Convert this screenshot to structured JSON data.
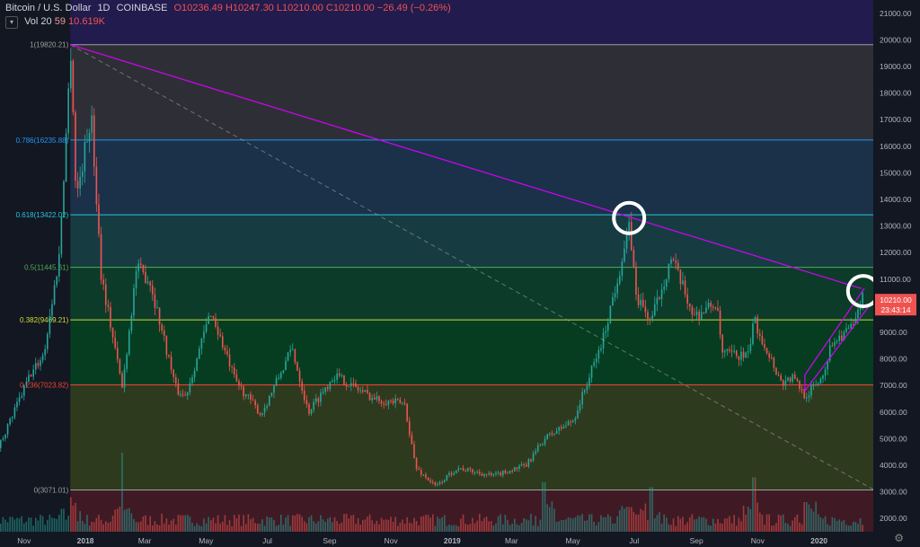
{
  "header": {
    "symbol": "Bitcoin / U.S. Dollar",
    "interval": "1D",
    "exchange": "COINBASE",
    "ohlc": "O10236.49  H10247.30  L10210.00  C10210.00  −26.49 (−0.26%)"
  },
  "volume_indicator": {
    "label": "Vol 20",
    "value1": "59",
    "value2": "10.619K"
  },
  "price_badge": {
    "price": "10210.00",
    "countdown": "23:43:14"
  },
  "colors": {
    "background": "#131722",
    "trendline": "#d500f9",
    "circle": "#ffffff",
    "up": "#26a69a",
    "down": "#ef5350"
  },
  "chart_data": {
    "type": "candlestick",
    "y_axis": {
      "range": [
        1500,
        21500
      ],
      "ticks": [
        "21000.00",
        "20000.00",
        "19000.00",
        "18000.00",
        "17000.00",
        "16000.00",
        "15000.00",
        "14000.00",
        "13000.00",
        "12000.00",
        "11000.00",
        "10000.00",
        "9000.00",
        "8000.00",
        "7000.00",
        "6000.00",
        "5000.00",
        "4000.00",
        "3000.00",
        "2000.00"
      ]
    },
    "x_axis": {
      "labels": [
        "Nov",
        "2018",
        "Mar",
        "May",
        "Jul",
        "Sep",
        "Nov",
        "2019",
        "Mar",
        "May",
        "Jul",
        "Sep",
        "Nov",
        "2020"
      ]
    },
    "fib_levels": [
      {
        "label": "1(19820.21)",
        "value": 19820.21,
        "color": "#9e9e9e",
        "fill": "#2e2f36"
      },
      {
        "label": "0.786(16235.88)",
        "value": 16235.88,
        "color": "#2196f3",
        "fill": "#1a3149"
      },
      {
        "label": "0.618(13422.02)",
        "value": 13422.02,
        "color": "#26c6da",
        "fill": "#163c42"
      },
      {
        "label": "0.5(11445.61)",
        "value": 11445.61,
        "color": "#4caf50",
        "fill": "#0d3b2a"
      },
      {
        "label": "0.382(9469.21)",
        "value": 9469.21,
        "color": "#cddc39",
        "fill": "#063d20"
      },
      {
        "label": "0.236(7023.82)",
        "value": 7023.82,
        "color": "#f44336",
        "fill": "#2e3a1e"
      },
      {
        "label": "0(3071.01)",
        "value": 3071.01,
        "color": "#9e9e9e",
        "fill": "#3f1a24"
      }
    ],
    "top_band": {
      "from": 19820.21,
      "to": 21500,
      "fill": "#221b4d"
    },
    "price_path": [
      [
        "2017-10-01",
        4300
      ],
      [
        "2017-10-20",
        5900
      ],
      [
        "2017-11-05",
        7300
      ],
      [
        "2017-11-20",
        8200
      ],
      [
        "2017-12-05",
        11800
      ],
      [
        "2017-12-17",
        19800
      ],
      [
        "2017-12-22",
        14000
      ],
      [
        "2018-01-06",
        17200
      ],
      [
        "2018-01-16",
        11200
      ],
      [
        "2018-02-06",
        6900
      ],
      [
        "2018-02-20",
        11400
      ],
      [
        "2018-03-05",
        11000
      ],
      [
        "2018-04-01",
        6800
      ],
      [
        "2018-04-10",
        6600
      ],
      [
        "2018-05-05",
        9800
      ],
      [
        "2018-05-29",
        7200
      ],
      [
        "2018-06-24",
        5900
      ],
      [
        "2018-07-25",
        8400
      ],
      [
        "2018-08-10",
        6000
      ],
      [
        "2018-09-05",
        7400
      ],
      [
        "2018-10-15",
        6500
      ],
      [
        "2018-11-14",
        6300
      ],
      [
        "2018-11-25",
        3900
      ],
      [
        "2018-12-15",
        3200
      ],
      [
        "2019-01-05",
        3900
      ],
      [
        "2019-02-10",
        3600
      ],
      [
        "2019-03-15",
        4000
      ],
      [
        "2019-04-02",
        5000
      ],
      [
        "2019-05-01",
        5700
      ],
      [
        "2019-05-30",
        8700
      ],
      [
        "2019-06-26",
        13000
      ],
      [
        "2019-07-02",
        10400
      ],
      [
        "2019-07-17",
        9400
      ],
      [
        "2019-08-06",
        11800
      ],
      [
        "2019-08-29",
        9600
      ],
      [
        "2019-09-20",
        10100
      ],
      [
        "2019-09-26",
        8200
      ],
      [
        "2019-10-22",
        8100
      ],
      [
        "2019-10-27",
        9500
      ],
      [
        "2019-11-24",
        7100
      ],
      [
        "2019-12-05",
        7300
      ],
      [
        "2019-12-18",
        6600
      ],
      [
        "2020-01-03",
        7300
      ],
      [
        "2020-01-14",
        8700
      ],
      [
        "2020-02-04",
        9200
      ],
      [
        "2020-02-12",
        10300
      ],
      [
        "2020-02-15",
        10210
      ]
    ],
    "volume_spikes": [
      [
        "2017-12-17",
        0.35
      ],
      [
        "2018-02-06",
        0.8
      ],
      [
        "2019-04-02",
        0.5
      ],
      [
        "2019-06-26",
        0.25
      ],
      [
        "2019-07-17",
        0.45
      ],
      [
        "2019-10-27",
        0.55
      ],
      [
        "2019-12-18",
        0.3
      ]
    ],
    "annotations": {
      "descending_trendline": [
        [
          "2017-12-17",
          19820.21
        ],
        [
          "2020-02-12",
          10650
        ]
      ],
      "dashed_trendline": [
        [
          "2017-12-17",
          19820.21
        ],
        [
          "2020-02-25",
          3071.01
        ]
      ],
      "rising_channel": {
        "lower": [
          [
            "2019-12-18",
            6800
          ],
          [
            "2020-02-20",
            10000
          ]
        ],
        "upper": [
          [
            "2019-12-18",
            7400
          ],
          [
            "2020-02-15",
            10650
          ]
        ]
      },
      "circles": [
        [
          "2019-06-26",
          13300
        ],
        [
          "2020-02-14",
          10550
        ]
      ]
    }
  }
}
